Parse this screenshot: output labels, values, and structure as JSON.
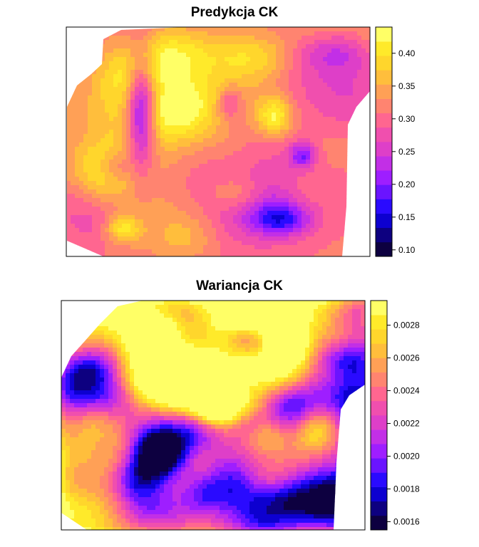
{
  "chart_data": [
    {
      "type": "heatmap",
      "title": "Predykcja CK",
      "xlabel": "",
      "ylabel": "",
      "colorbar": {
        "range": [
          0.09,
          0.44
        ],
        "ticks": [
          "0.10",
          "0.15",
          "0.20",
          "0.25",
          "0.30",
          "0.35",
          "0.40"
        ],
        "colors": [
          "#0D0040",
          "#0D0080",
          "#0D00D0",
          "#2A0AFF",
          "#6A14FF",
          "#9E1EFF",
          "#C22FE6",
          "#DE3FC8",
          "#F04FAE",
          "#FF6690",
          "#FF8470",
          "#FFA056",
          "#FFBE3C",
          "#FFD62C",
          "#FFEA2A",
          "#FFFF66"
        ]
      },
      "regions": {
        "low": [
          "central-left dark vertical streak",
          "center-bottom dark patch",
          "right-center dark spot"
        ],
        "high": [
          "center-right bright yellow spot",
          "upper area yellow patches",
          "lower-left yellow spot"
        ]
      }
    },
    {
      "type": "heatmap",
      "title": "Wariancja CK",
      "xlabel": "",
      "ylabel": "",
      "colorbar": {
        "range": [
          0.00155,
          0.00295
        ],
        "ticks": [
          "0.0016",
          "0.0018",
          "0.0020",
          "0.0022",
          "0.0024",
          "0.0026",
          "0.0028"
        ],
        "colors": [
          "#0D0040",
          "#0D0080",
          "#0D00D0",
          "#2A0AFF",
          "#6A14FF",
          "#9E1EFF",
          "#C22FE6",
          "#DE3FC8",
          "#F04FAE",
          "#FF6690",
          "#FF8470",
          "#FFA056",
          "#FFBE3C",
          "#FFD62C",
          "#FFEA2A",
          "#FFFF66"
        ]
      },
      "regions": {
        "low": [
          "spotty dark blue cells across the domain"
        ],
        "high": [
          "irregular pink/magenta network between cells",
          "yellow/orange near edges"
        ]
      }
    }
  ]
}
